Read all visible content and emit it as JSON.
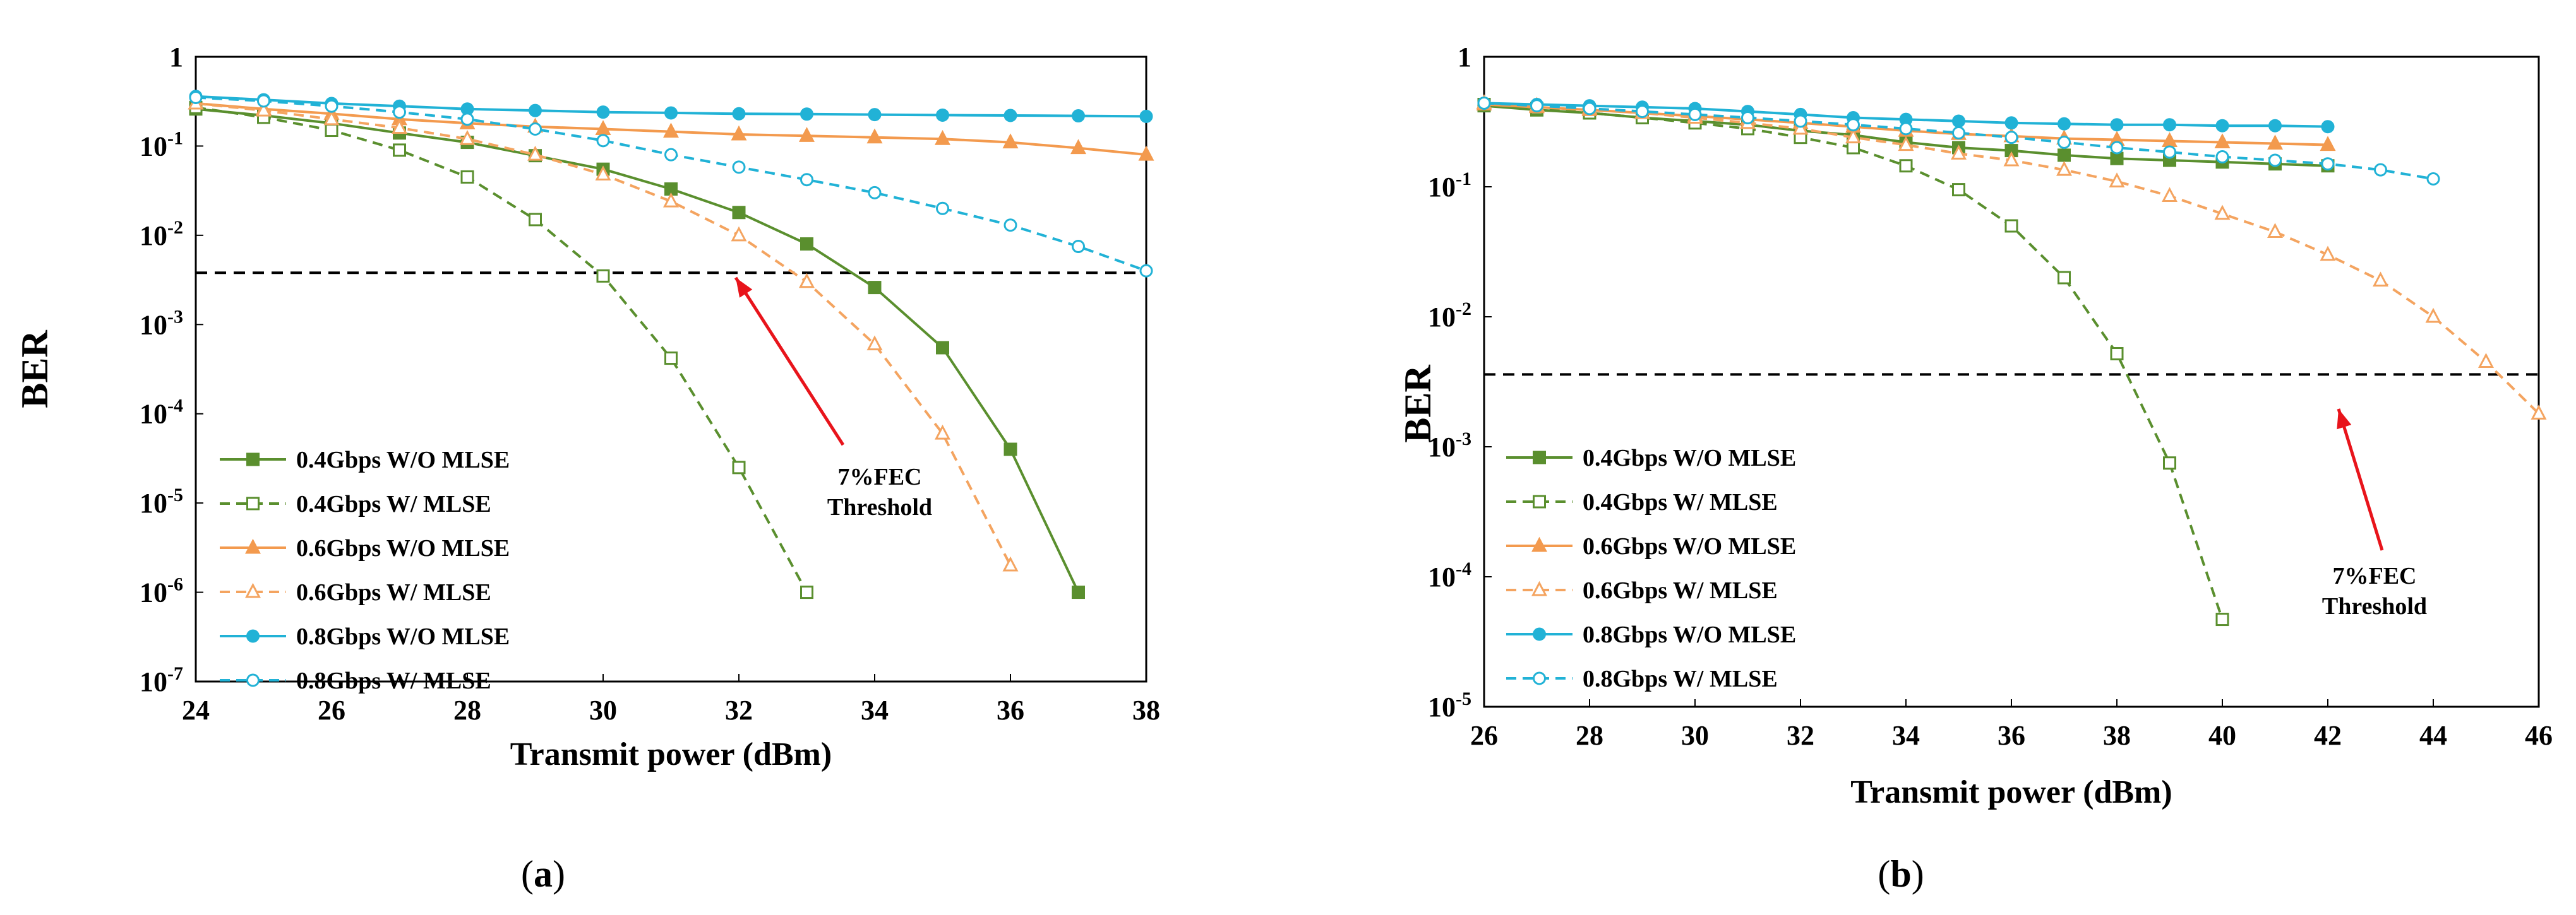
{
  "colors": {
    "green": "#5A8F2E",
    "orange": "#F4A460",
    "orange_solid": "#F39A4E",
    "cyan": "#21B2D6",
    "threshold": "#000000",
    "arrow": "#E8141B"
  },
  "chart_data": [
    {
      "type": "line",
      "panel": "(a)",
      "caption_open": "(",
      "caption_letter": "a",
      "caption_close": ")",
      "xlabel": "Transmit power (dBm)",
      "ylabel": "BER",
      "xlim": [
        24,
        38
      ],
      "xticks": [
        "24",
        "26",
        "28",
        "30",
        "32",
        "34",
        "36",
        "38"
      ],
      "xtick_values": [
        24,
        26,
        28,
        30,
        32,
        34,
        36,
        38
      ],
      "yscale": "log",
      "ylim": [
        1e-07,
        1
      ],
      "ytick_exps": [
        0,
        -1,
        -2,
        -3,
        -4,
        -5,
        -6,
        -7
      ],
      "ytick_one": "1",
      "ytick_base": "10",
      "ytick_sups": [
        "",
        "-1",
        "-2",
        "-3",
        "-4",
        "-5",
        "-6",
        "-7"
      ],
      "threshold": 0.0038,
      "annotation": {
        "line1": "7%FEC",
        "line2": "Threshold"
      },
      "series": [
        {
          "name": "0.4Gbps W/O MLSE",
          "style": "solid",
          "marker": "square",
          "filled": true,
          "color": "#5A8F2E",
          "x": [
            24,
            25,
            26,
            27,
            28,
            29,
            30,
            31,
            32,
            33,
            34,
            35,
            36,
            37
          ],
          "y": [
            0.26,
            0.22,
            0.18,
            0.14,
            0.11,
            0.078,
            0.055,
            0.033,
            0.018,
            0.008,
            0.0026,
            0.00055,
            4e-05,
            1e-06
          ]
        },
        {
          "name": "0.4Gbps W/ MLSE",
          "style": "dashed",
          "marker": "square",
          "filled": false,
          "color": "#5A8F2E",
          "x": [
            24,
            25,
            26,
            27,
            28,
            29,
            30,
            31,
            32,
            33
          ],
          "y": [
            0.27,
            0.21,
            0.15,
            0.09,
            0.045,
            0.015,
            0.0035,
            0.00042,
            2.5e-05,
            1e-06
          ]
        },
        {
          "name": "0.6Gbps W/O MLSE",
          "style": "solid",
          "marker": "triangle",
          "filled": true,
          "color": "#F39A4E",
          "x": [
            24,
            25,
            26,
            27,
            28,
            29,
            30,
            31,
            32,
            33,
            34,
            35,
            36,
            37,
            38
          ],
          "y": [
            0.3,
            0.26,
            0.23,
            0.2,
            0.18,
            0.165,
            0.155,
            0.145,
            0.135,
            0.13,
            0.125,
            0.12,
            0.11,
            0.095,
            0.08
          ]
        },
        {
          "name": "0.6Gbps W/ MLSE",
          "style": "dashed",
          "marker": "triangle",
          "filled": false,
          "color": "#F4A460",
          "x": [
            24,
            25,
            26,
            27,
            28,
            29,
            30,
            31,
            32,
            33,
            34,
            35,
            36
          ],
          "y": [
            0.3,
            0.25,
            0.2,
            0.16,
            0.12,
            0.08,
            0.048,
            0.024,
            0.01,
            0.003,
            0.0006,
            6e-05,
            2e-06
          ]
        },
        {
          "name": "0.8Gbps W/O MLSE",
          "style": "solid",
          "marker": "circle",
          "filled": true,
          "color": "#21B2D6",
          "x": [
            24,
            25,
            26,
            27,
            28,
            29,
            30,
            31,
            32,
            33,
            34,
            35,
            36,
            37,
            38
          ],
          "y": [
            0.36,
            0.33,
            0.3,
            0.28,
            0.26,
            0.25,
            0.24,
            0.235,
            0.23,
            0.228,
            0.225,
            0.222,
            0.22,
            0.218,
            0.215
          ]
        },
        {
          "name": "0.8Gbps W/ MLSE",
          "style": "dashed",
          "marker": "circle",
          "filled": false,
          "color": "#21B2D6",
          "x": [
            24,
            25,
            26,
            27,
            28,
            29,
            30,
            31,
            32,
            33,
            34,
            35,
            36,
            37,
            38
          ],
          "y": [
            0.35,
            0.32,
            0.28,
            0.24,
            0.2,
            0.155,
            0.115,
            0.08,
            0.058,
            0.042,
            0.03,
            0.02,
            0.013,
            0.0075,
            0.004
          ]
        }
      ]
    },
    {
      "type": "line",
      "panel": "(b)",
      "caption_open": "(",
      "caption_letter": "b",
      "caption_close": ")",
      "xlabel": "Transmit power (dBm)",
      "ylabel": "BER",
      "xlim": [
        26,
        46
      ],
      "xticks": [
        "26",
        "28",
        "30",
        "32",
        "34",
        "36",
        "38",
        "40",
        "42",
        "44",
        "46"
      ],
      "xtick_values": [
        26,
        28,
        30,
        32,
        34,
        36,
        38,
        40,
        42,
        44,
        46
      ],
      "yscale": "log",
      "ylim": [
        1e-05,
        1
      ],
      "ytick_exps": [
        0,
        -1,
        -2,
        -3,
        -4,
        -5
      ],
      "ytick_one": "1",
      "ytick_base": "10",
      "ytick_sups": [
        "",
        "-1",
        "-2",
        "-3",
        "-4",
        "-5"
      ],
      "threshold": 0.0036,
      "annotation": {
        "line1": "7%FEC",
        "line2": "Threshold"
      },
      "series": [
        {
          "name": "0.4Gbps W/O MLSE",
          "style": "solid",
          "marker": "square",
          "filled": true,
          "color": "#5A8F2E",
          "x": [
            26,
            27,
            28,
            29,
            30,
            31,
            32,
            33,
            34,
            35,
            36,
            37,
            38,
            39,
            40,
            41,
            42
          ],
          "y": [
            0.42,
            0.39,
            0.37,
            0.34,
            0.32,
            0.3,
            0.27,
            0.25,
            0.22,
            0.2,
            0.19,
            0.175,
            0.165,
            0.16,
            0.155,
            0.15,
            0.145
          ]
        },
        {
          "name": "0.4Gbps W/ MLSE",
          "style": "dashed",
          "marker": "square",
          "filled": false,
          "color": "#5A8F2E",
          "x": [
            26,
            27,
            28,
            29,
            30,
            31,
            32,
            33,
            34,
            35,
            36,
            37,
            38,
            39,
            40
          ],
          "y": [
            0.43,
            0.4,
            0.37,
            0.34,
            0.31,
            0.28,
            0.24,
            0.2,
            0.145,
            0.095,
            0.05,
            0.02,
            0.0052,
            0.00075,
            4.7e-05
          ]
        },
        {
          "name": "0.6Gbps W/O MLSE",
          "style": "solid",
          "marker": "triangle",
          "filled": true,
          "color": "#F39A4E",
          "x": [
            26,
            27,
            28,
            29,
            30,
            31,
            32,
            33,
            34,
            35,
            36,
            37,
            38,
            39,
            40,
            41,
            42
          ],
          "y": [
            0.43,
            0.41,
            0.39,
            0.37,
            0.35,
            0.33,
            0.31,
            0.29,
            0.27,
            0.255,
            0.245,
            0.235,
            0.23,
            0.225,
            0.22,
            0.215,
            0.21
          ]
        },
        {
          "name": "0.6Gbps W/ MLSE",
          "style": "dashed",
          "marker": "triangle",
          "filled": false,
          "color": "#F4A460",
          "x": [
            26,
            27,
            28,
            29,
            30,
            31,
            32,
            33,
            34,
            35,
            36,
            37,
            38,
            39,
            40,
            41,
            42,
            43,
            44,
            45,
            46
          ],
          "y": [
            0.44,
            0.42,
            0.4,
            0.37,
            0.34,
            0.31,
            0.28,
            0.24,
            0.21,
            0.18,
            0.16,
            0.135,
            0.11,
            0.085,
            0.062,
            0.045,
            0.03,
            0.019,
            0.01,
            0.0045,
            0.0018
          ]
        },
        {
          "name": "0.8Gbps W/O MLSE",
          "style": "solid",
          "marker": "circle",
          "filled": true,
          "color": "#21B2D6",
          "x": [
            26,
            27,
            28,
            29,
            30,
            31,
            32,
            33,
            34,
            35,
            36,
            37,
            38,
            39,
            40,
            41,
            42
          ],
          "y": [
            0.44,
            0.43,
            0.42,
            0.41,
            0.4,
            0.38,
            0.36,
            0.34,
            0.33,
            0.32,
            0.31,
            0.305,
            0.3,
            0.3,
            0.295,
            0.295,
            0.29
          ]
        },
        {
          "name": "0.8Gbps W/ MLSE",
          "style": "dashed",
          "marker": "circle",
          "filled": false,
          "color": "#21B2D6",
          "x": [
            26,
            27,
            28,
            29,
            30,
            31,
            32,
            33,
            34,
            35,
            36,
            37,
            38,
            39,
            40,
            41,
            42,
            43,
            44
          ],
          "y": [
            0.44,
            0.42,
            0.4,
            0.38,
            0.36,
            0.34,
            0.32,
            0.3,
            0.28,
            0.26,
            0.24,
            0.22,
            0.2,
            0.185,
            0.17,
            0.16,
            0.15,
            0.135,
            0.115
          ]
        }
      ]
    }
  ]
}
